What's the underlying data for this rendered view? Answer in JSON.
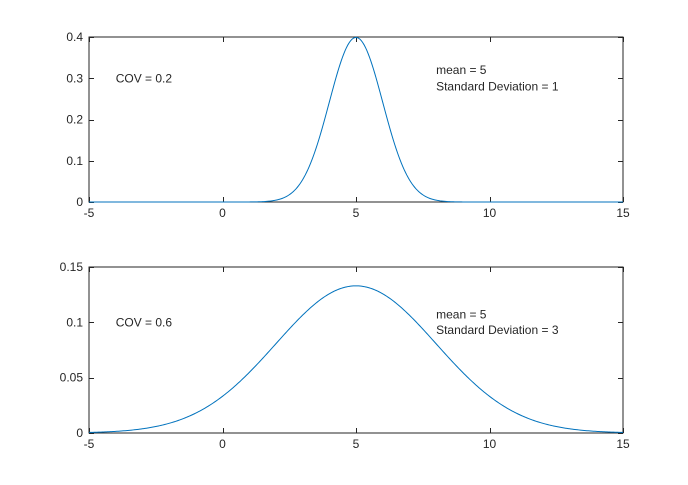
{
  "chart_data": [
    {
      "type": "line",
      "xlim": [
        -5,
        15
      ],
      "ylim": [
        0,
        0.4
      ],
      "xticks": [
        -5,
        0,
        5,
        10,
        15
      ],
      "xtick_labels": [
        "-5",
        "0",
        "5",
        "10",
        "15"
      ],
      "yticks": [
        0,
        0.1,
        0.2,
        0.3,
        0.4
      ],
      "ytick_labels": [
        "0",
        "0.1",
        "0.2",
        "0.3",
        "0.4"
      ],
      "grid": false,
      "line_color": "#0072BD",
      "series": [
        {
          "distribution": "normal",
          "mean": 5,
          "std": 1,
          "x_range": [
            -5,
            15
          ],
          "peak": 0.399
        }
      ],
      "annotations": [
        {
          "text": "COV = 0.2",
          "x": -4,
          "y": 0.3
        },
        {
          "text": "mean = 5",
          "x": 8,
          "y": 0.32
        },
        {
          "text": "Standard Deviation = 1",
          "x": 8,
          "y": 0.28
        }
      ]
    },
    {
      "type": "line",
      "xlim": [
        -5,
        15
      ],
      "ylim": [
        0,
        0.15
      ],
      "xticks": [
        -5,
        0,
        5,
        10,
        15
      ],
      "xtick_labels": [
        "-5",
        "0",
        "5",
        "10",
        "15"
      ],
      "yticks": [
        0,
        0.05,
        0.1,
        0.15
      ],
      "ytick_labels": [
        "0",
        "0.05",
        "0.1",
        "0.15"
      ],
      "grid": false,
      "line_color": "#0072BD",
      "series": [
        {
          "distribution": "normal",
          "mean": 5,
          "std": 3,
          "x_range": [
            -5,
            15
          ],
          "peak": 0.133
        }
      ],
      "annotations": [
        {
          "text": "COV = 0.6",
          "x": -4,
          "y": 0.1
        },
        {
          "text": "mean = 5",
          "x": 8,
          "y": 0.107
        },
        {
          "text": "Standard Deviation = 3",
          "x": 8,
          "y": 0.093
        }
      ]
    }
  ]
}
